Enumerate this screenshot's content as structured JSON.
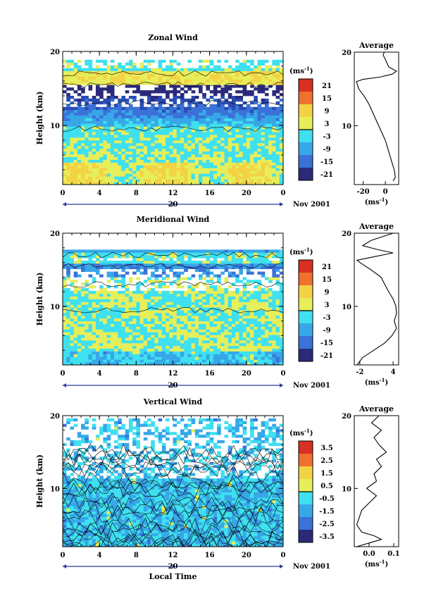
{
  "chart_data": [
    {
      "type": "heatmap",
      "title": "Zonal Wind",
      "ylabel": "Height (km)",
      "xlabel": "",
      "xlim": [
        0,
        24
      ],
      "ylim": [
        2,
        20
      ],
      "x_ticks": [
        "0",
        "4",
        "8",
        "12",
        "16",
        "20",
        "0"
      ],
      "y_ticks": [
        "20",
        "10"
      ],
      "date_day": "20",
      "date_label": "Nov 2001",
      "colorbar": {
        "unit": "(ms",
        "unit_exp": "-1",
        "unit_close": ")",
        "levels": [
          "21",
          "15",
          "9",
          "3",
          "-3",
          "-9",
          "-15",
          "-21"
        ],
        "vmin": -24,
        "vmax": 24
      },
      "average": {
        "title": "Average",
        "xlabel": "(ms",
        "xlabel_exp": "-1",
        "xlabel_close": ")",
        "x_ticks": [
          "-20",
          "0"
        ],
        "y_ticks": [
          "20",
          "10"
        ],
        "xlim": [
          -28,
          12
        ],
        "points": [
          [
            7,
            2.5
          ],
          [
            9,
            3
          ],
          [
            8,
            4
          ],
          [
            6,
            5
          ],
          [
            4,
            6
          ],
          [
            2,
            7
          ],
          [
            0,
            8
          ],
          [
            -3,
            9
          ],
          [
            -6,
            10
          ],
          [
            -9,
            11
          ],
          [
            -12,
            12
          ],
          [
            -15,
            13
          ],
          [
            -19,
            14
          ],
          [
            -24,
            15
          ],
          [
            -26,
            16
          ],
          [
            -20,
            16.3
          ],
          [
            -5,
            16.6
          ],
          [
            6,
            17
          ],
          [
            10,
            17.4
          ],
          [
            3,
            18
          ],
          [
            0,
            19
          ],
          [
            -2,
            19.6
          ],
          [
            -1,
            20
          ]
        ]
      }
    },
    {
      "type": "heatmap",
      "title": "Meridional Wind",
      "ylabel": "Height (km)",
      "xlabel": "",
      "xlim": [
        0,
        24
      ],
      "ylim": [
        2,
        20
      ],
      "x_ticks": [
        "0",
        "4",
        "8",
        "12",
        "16",
        "20",
        "0"
      ],
      "y_ticks": [
        "20",
        "10"
      ],
      "date_day": "20",
      "date_label": "Nov 2001",
      "colorbar": {
        "unit": "(ms",
        "unit_exp": "-1",
        "unit_close": ")",
        "levels": [
          "21",
          "15",
          "9",
          "3",
          "-3",
          "-9",
          "-15",
          "-21"
        ],
        "vmin": -24,
        "vmax": 24
      },
      "average": {
        "title": "Average",
        "xlabel": "(ms",
        "xlabel_exp": "-1",
        "xlabel_close": ")",
        "x_ticks": [
          "-2",
          "4"
        ],
        "y_ticks": [
          "20",
          "10"
        ],
        "xlim": [
          -3,
          5
        ],
        "points": [
          [
            -2.5,
            2
          ],
          [
            -1.5,
            3
          ],
          [
            0.5,
            4
          ],
          [
            2.5,
            5
          ],
          [
            3.8,
            6
          ],
          [
            4.6,
            7
          ],
          [
            4.2,
            8
          ],
          [
            4.6,
            9
          ],
          [
            4.5,
            10
          ],
          [
            4,
            11
          ],
          [
            3.2,
            12
          ],
          [
            2.5,
            13
          ],
          [
            1.8,
            14
          ],
          [
            0,
            15
          ],
          [
            -2,
            16
          ],
          [
            -2.5,
            16.3
          ],
          [
            0,
            16.7
          ],
          [
            4,
            17.3
          ],
          [
            1,
            17.8
          ],
          [
            -1.5,
            18.3
          ],
          [
            0,
            19
          ],
          [
            4,
            20
          ]
        ]
      }
    },
    {
      "type": "heatmap",
      "title": "Vertical Wind",
      "ylabel": "Height (km)",
      "xlabel": "Local Time",
      "xlim": [
        0,
        24
      ],
      "ylim": [
        2,
        20
      ],
      "x_ticks": [
        "0",
        "4",
        "8",
        "12",
        "16",
        "20",
        "0"
      ],
      "y_ticks": [
        "20",
        "10"
      ],
      "date_day": "20",
      "date_label": "Nov 2001",
      "colorbar": {
        "unit": "(ms",
        "unit_exp": "-1",
        "unit_close": ")",
        "levels": [
          "3.5",
          "2.5",
          "1.5",
          "0.5",
          "-0.5",
          "-1.5",
          "-2.5",
          "-3.5"
        ],
        "vmin": -4,
        "vmax": 4
      },
      "average": {
        "title": "Average",
        "xlabel": "(ms",
        "xlabel_exp": "-1",
        "xlabel_close": ")",
        "x_ticks": [
          "0.0",
          "0.1"
        ],
        "y_ticks": [
          "20",
          "10"
        ],
        "xlim": [
          -0.06,
          0.12
        ],
        "points": [
          [
            -0.05,
            2
          ],
          [
            0.0,
            2.5
          ],
          [
            0.05,
            3
          ],
          [
            0.02,
            3.5
          ],
          [
            -0.03,
            4
          ],
          [
            -0.05,
            5
          ],
          [
            -0.04,
            6
          ],
          [
            -0.03,
            7
          ],
          [
            0.0,
            8
          ],
          [
            0.03,
            9
          ],
          [
            -0.01,
            10
          ],
          [
            0.03,
            11
          ],
          [
            0.02,
            12
          ],
          [
            0.05,
            13
          ],
          [
            0.03,
            14
          ],
          [
            0.07,
            15
          ],
          [
            0.04,
            16
          ],
          [
            0.02,
            17
          ],
          [
            0.05,
            18
          ],
          [
            0.01,
            19
          ],
          [
            0.04,
            20
          ]
        ]
      }
    }
  ]
}
